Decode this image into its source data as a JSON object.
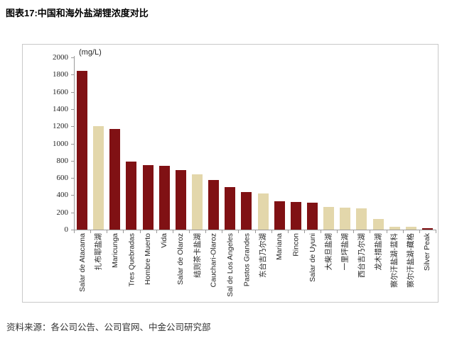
{
  "page": {
    "title": "图表17:中国和海外盐湖锂浓度对比",
    "source": "资料来源：各公司公告、公司官网、中金公司研究部"
  },
  "chart_data": {
    "type": "bar",
    "title": "中国和海外盐湖锂浓度对比",
    "unit_label": "(mg/L)",
    "xlabel": "",
    "ylabel": "(mg/L)",
    "ylim": [
      0,
      2000
    ],
    "ytick_step": 200,
    "grid": false,
    "legend": "none",
    "categories": [
      "Salar de Atacama",
      "扎布耶盐湖",
      "Maricunga",
      "Tres Quebradas",
      "Hombre Muerto",
      "Vida",
      "Salar de Olaroz",
      "结则茶卡盐湖",
      "Cauchari-Olaroz",
      "Sal de Los Angeles",
      "Pastos Grandes",
      "东台吉乃尔湖",
      "Mariana",
      "Rincon",
      "Salar de Uyuni",
      "大柴旦盐湖",
      "一里坪盐湖",
      "西台吉乃尔湖",
      "龙木措盐湖",
      "察尔汗盐湖-蓝科",
      "察尔汗盐湖-藏格",
      "Silver Peak"
    ],
    "values": [
      1840,
      1200,
      1170,
      790,
      745,
      740,
      690,
      640,
      580,
      490,
      440,
      420,
      330,
      320,
      315,
      265,
      255,
      250,
      125,
      35,
      30,
      20
    ],
    "groups": [
      "overseas",
      "china",
      "overseas",
      "overseas",
      "overseas",
      "overseas",
      "overseas",
      "china",
      "overseas",
      "overseas",
      "overseas",
      "china",
      "overseas",
      "overseas",
      "overseas",
      "china",
      "china",
      "china",
      "china",
      "china",
      "china",
      "overseas"
    ],
    "colors": {
      "overseas": "#801114",
      "china": "#E3D7AB"
    }
  }
}
